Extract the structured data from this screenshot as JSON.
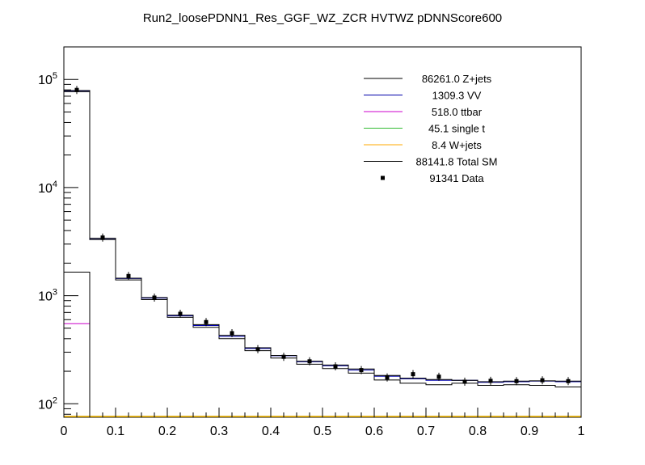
{
  "chart_data": {
    "type": "step-histogram",
    "title": "Run2_loosePDNN1_Res_GGF_WZ_ZCR HVTWZ  pDNNScore600",
    "xlabel": "",
    "ylabel": "",
    "x_edges": [
      0,
      0.05,
      0.1,
      0.15,
      0.2,
      0.25,
      0.3,
      0.35,
      0.4,
      0.45,
      0.5,
      0.55,
      0.6,
      0.65,
      0.7,
      0.75,
      0.8,
      0.85,
      0.9,
      0.95,
      1.0
    ],
    "xlim": [
      0,
      1
    ],
    "ylim": [
      75,
      200000
    ],
    "y_scale": "log",
    "x_ticks": [
      {
        "v": 0,
        "label": "0"
      },
      {
        "v": 0.1,
        "label": "0.1"
      },
      {
        "v": 0.2,
        "label": "0.2"
      },
      {
        "v": 0.3,
        "label": "0.3"
      },
      {
        "v": 0.4,
        "label": "0.4"
      },
      {
        "v": 0.5,
        "label": "0.5"
      },
      {
        "v": 0.6,
        "label": "0.6"
      },
      {
        "v": 0.7,
        "label": "0.7"
      },
      {
        "v": 0.8,
        "label": "0.8"
      },
      {
        "v": 0.9,
        "label": "0.9"
      },
      {
        "v": 1,
        "label": "1"
      }
    ],
    "y_ticks": [
      {
        "v": 100,
        "base": "10",
        "exp": "2"
      },
      {
        "v": 1000,
        "base": "10",
        "exp": "3"
      },
      {
        "v": 10000,
        "base": "10",
        "exp": "4"
      },
      {
        "v": 100000,
        "base": "10",
        "exp": "5"
      }
    ],
    "series": [
      {
        "name": "86261.0 Z+jets",
        "color": "#000000",
        "style": "step",
        "values": [
          77000,
          3300,
          1400,
          920,
          630,
          510,
          400,
          310,
          265,
          232,
          212,
          192,
          166,
          155,
          150,
          155,
          148,
          150,
          148,
          143
        ]
      },
      {
        "name": "1309.3 VV",
        "color": "#0000aa",
        "style": "step",
        "values": [
          78500,
          3380,
          1440,
          950,
          650,
          530,
          420,
          325,
          278,
          245,
          225,
          205,
          180,
          170,
          165,
          165,
          158,
          160,
          162,
          160
        ]
      },
      {
        "name": "518.0 ttbar",
        "color": "#cc00cc",
        "style": "step",
        "values": [
          550,
          0,
          0,
          0,
          0,
          0,
          0,
          0,
          0,
          0,
          0,
          0,
          0,
          0,
          0,
          0,
          0,
          0,
          0,
          0
        ]
      },
      {
        "name": "45.1 single t",
        "color": "#33bb33",
        "style": "step",
        "values": [
          0,
          0,
          0,
          0,
          0,
          0,
          0,
          0,
          0,
          0,
          0,
          0,
          0,
          0,
          0,
          0,
          0,
          0,
          0,
          0
        ]
      },
      {
        "name": "8.4 W+jets",
        "color": "#ffaa00",
        "style": "step",
        "values": [
          0,
          0,
          0,
          0,
          0,
          0,
          0,
          0,
          0,
          0,
          0,
          0,
          0,
          0,
          0,
          0,
          0,
          0,
          0,
          0
        ]
      },
      {
        "name": "88141.8 Total SM",
        "color": "#000000",
        "style": "step",
        "values": [
          79000,
          3400,
          1450,
          960,
          660,
          540,
          430,
          330,
          280,
          248,
          228,
          210,
          183,
          172,
          168,
          165,
          160,
          162,
          163,
          162
        ]
      }
    ],
    "extra_step": {
      "color": "#000000",
      "values": [
        1650
      ]
    },
    "data_points": {
      "name": "91341 Data",
      "color": "#000000",
      "x": [
        0.025,
        0.075,
        0.125,
        0.175,
        0.225,
        0.275,
        0.325,
        0.375,
        0.425,
        0.475,
        0.525,
        0.575,
        0.625,
        0.675,
        0.725,
        0.775,
        0.825,
        0.875,
        0.925,
        0.975
      ],
      "values": [
        80000,
        3450,
        1520,
        960,
        680,
        570,
        450,
        320,
        272,
        247,
        222,
        205,
        175,
        188,
        178,
        160,
        163,
        162,
        165,
        162
      ]
    },
    "legend": {
      "position": "top-right",
      "entries": [
        {
          "label": "86261.0 Z+jets",
          "color": "#000000",
          "marker": "line"
        },
        {
          "label": "1309.3 VV",
          "color": "#0000aa",
          "marker": "line"
        },
        {
          "label": "518.0 ttbar",
          "color": "#cc00cc",
          "marker": "line"
        },
        {
          "label": "45.1 single t",
          "color": "#33bb33",
          "marker": "line"
        },
        {
          "label": "8.4 W+jets",
          "color": "#ffaa00",
          "marker": "line"
        },
        {
          "label": "88141.8 Total SM",
          "color": "#000000",
          "marker": "line"
        },
        {
          "label": "91341 Data",
          "color": "#000000",
          "marker": "point"
        }
      ]
    },
    "grid": false
  }
}
